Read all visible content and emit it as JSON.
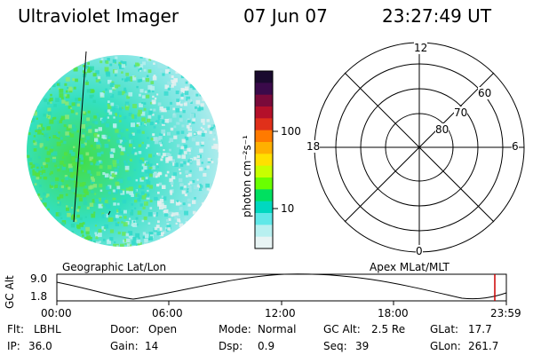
{
  "header": {
    "instrument": "Ultraviolet Imager",
    "date": "07 Jun 07",
    "time": "23:27:49 UT"
  },
  "colorbar": {
    "label": "photon cm⁻²s⁻¹",
    "ticks": [
      "100",
      "10"
    ],
    "colors": [
      "#1a0a2e",
      "#3a0a4a",
      "#7a0a3a",
      "#b4102a",
      "#e0301a",
      "#ff7a00",
      "#ffb000",
      "#ffe000",
      "#c8ff00",
      "#6aff00",
      "#00e060",
      "#00d8c0",
      "#60e8e8",
      "#b8f0f0",
      "#e8f4f4"
    ]
  },
  "left_panel": {
    "label": "Geographic Lat/Lon"
  },
  "right_panel": {
    "label": "Apex MLat/MLT",
    "mlt_labels": [
      "12",
      "18",
      "6",
      "0"
    ],
    "mlat_labels": [
      "60",
      "70",
      "80"
    ]
  },
  "timeline": {
    "axis_label": "GC Alt",
    "y_ticks": [
      "9.0",
      "1.8"
    ],
    "x_ticks": [
      "00:00",
      "06:00",
      "12:00",
      "18:00",
      "23:59"
    ],
    "marker_color": "#cc0000"
  },
  "info": [
    {
      "label": "Flt:",
      "value": "LBHL"
    },
    {
      "label": "Door:",
      "value": "Open"
    },
    {
      "label": "Mode:",
      "value": "Normal"
    },
    {
      "label": "GC Alt:",
      "value": "2.5 Re"
    },
    {
      "label": "GLat:",
      "value": "17.7"
    },
    {
      "label": "IP:",
      "value": "36.0"
    },
    {
      "label": "Gain:",
      "value": "14"
    },
    {
      "label": "Dsp:",
      "value": "0.9"
    },
    {
      "label": "Seq:",
      "value": "39"
    },
    {
      "label": "GLon:",
      "value": "261.7"
    }
  ]
}
